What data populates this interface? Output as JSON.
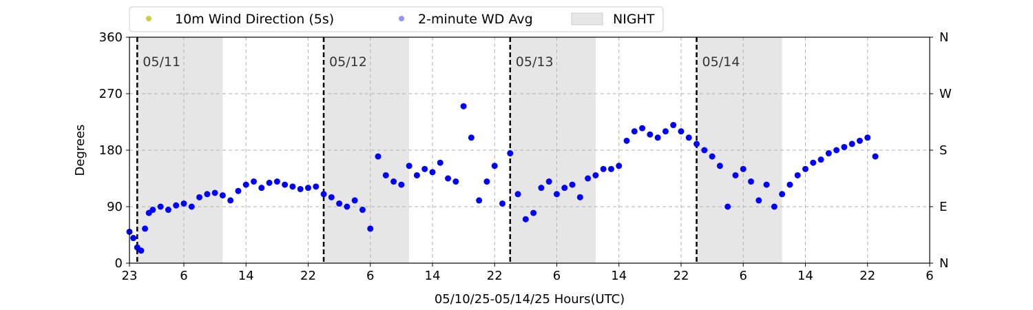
{
  "chart_data": {
    "type": "scatter",
    "title": "",
    "xlabel": "05/10/25-05/14/25  Hours(UTC)",
    "ylabel": "Degrees",
    "x_unit": "hours (UTC), cumulative from 05/10 23:00",
    "xlim": [
      0,
      103
    ],
    "ylim": [
      0,
      360
    ],
    "x_tick_values": [
      0,
      7,
      15,
      23,
      31,
      39,
      47,
      55,
      63,
      71,
      79,
      87,
      95,
      103
    ],
    "x_tick_labels": [
      "23",
      "6",
      "14",
      "22",
      "6",
      "14",
      "22",
      "6",
      "14",
      "22",
      "6",
      "14",
      "22",
      "6"
    ],
    "y_tick_values": [
      0,
      90,
      180,
      270,
      360
    ],
    "y_tick_labels": [
      "0",
      "90",
      "180",
      "270",
      "360"
    ],
    "y2_tick_labels": [
      "N",
      "E",
      "S",
      "W",
      "N"
    ],
    "grid": true,
    "legend_position": "top-center",
    "legend": [
      {
        "name": "10m Wind Direction (5s)",
        "kind": "marker",
        "color": "#bfbf00"
      },
      {
        "name": "2-minute WD Avg",
        "kind": "marker",
        "color": "#6f6fff"
      },
      {
        "name": "NIGHT",
        "kind": "patch",
        "color": "#e6e6e6"
      }
    ],
    "day_markers": [
      {
        "x": 1,
        "label": "05/11"
      },
      {
        "x": 25,
        "label": "05/12"
      },
      {
        "x": 49,
        "label": "05/13"
      },
      {
        "x": 73,
        "label": "05/14"
      }
    ],
    "night_shading": [
      [
        1,
        12
      ],
      [
        25,
        36
      ],
      [
        49,
        60
      ],
      [
        73,
        84
      ]
    ],
    "series": [
      {
        "name": "10m Wind Direction (5s)",
        "color": "#bfbf00",
        "opacity": 0.65,
        "x": [
          0,
          0.5,
          1,
          1.5,
          2,
          2.5,
          3,
          4,
          5,
          6,
          7,
          8,
          9,
          10,
          11,
          12,
          13,
          14,
          15,
          16,
          17,
          18,
          19,
          20,
          21,
          22,
          23,
          24,
          25,
          26,
          27,
          28,
          29,
          30,
          31,
          32,
          33,
          34,
          35,
          36,
          37,
          38,
          39,
          40,
          41,
          42,
          43,
          44,
          45,
          46,
          47,
          48,
          49,
          50,
          51,
          52,
          53,
          54,
          55,
          56,
          57,
          58,
          59,
          60,
          61,
          62,
          63,
          64,
          65,
          66,
          67,
          68,
          69,
          70,
          71,
          72,
          73,
          74,
          75,
          76,
          77,
          78,
          79,
          80,
          81,
          82,
          83,
          84,
          85,
          86,
          87,
          88,
          89,
          90,
          91,
          92,
          93,
          94,
          95,
          96
        ],
        "y": [
          50,
          40,
          25,
          20,
          55,
          80,
          85,
          90,
          85,
          92,
          95,
          90,
          105,
          110,
          112,
          108,
          100,
          115,
          125,
          130,
          120,
          128,
          130,
          125,
          122,
          118,
          120,
          122,
          110,
          105,
          95,
          90,
          100,
          85,
          55,
          170,
          140,
          130,
          125,
          155,
          140,
          150,
          145,
          160,
          135,
          130,
          250,
          200,
          100,
          130,
          155,
          95,
          175,
          110,
          70,
          80,
          120,
          130,
          110,
          120,
          125,
          105,
          135,
          140,
          150,
          150,
          155,
          195,
          210,
          215,
          205,
          200,
          210,
          220,
          210,
          200,
          190,
          180,
          170,
          155,
          90,
          140,
          150,
          130,
          100,
          125,
          90,
          110,
          125,
          140,
          150,
          160,
          165,
          175,
          180,
          185,
          190,
          195,
          200,
          170
        ]
      },
      {
        "name": "2-minute WD Avg",
        "color": "#0000ff",
        "opacity": 1.0,
        "x": [
          0,
          0.5,
          1,
          1.5,
          2,
          2.5,
          3,
          4,
          5,
          6,
          7,
          8,
          9,
          10,
          11,
          12,
          13,
          14,
          15,
          16,
          17,
          18,
          19,
          20,
          21,
          22,
          23,
          24,
          25,
          26,
          27,
          28,
          29,
          30,
          31,
          32,
          33,
          34,
          35,
          36,
          37,
          38,
          39,
          40,
          41,
          42,
          43,
          44,
          45,
          46,
          47,
          48,
          49,
          50,
          51,
          52,
          53,
          54,
          55,
          56,
          57,
          58,
          59,
          60,
          61,
          62,
          63,
          64,
          65,
          66,
          67,
          68,
          69,
          70,
          71,
          72,
          73,
          74,
          75,
          76,
          77,
          78,
          79,
          80,
          81,
          82,
          83,
          84,
          85,
          86,
          87,
          88,
          89,
          90,
          91,
          92,
          93,
          94,
          95,
          96
        ],
        "y": [
          50,
          40,
          25,
          20,
          55,
          80,
          85,
          90,
          85,
          92,
          95,
          90,
          105,
          110,
          112,
          108,
          100,
          115,
          125,
          130,
          120,
          128,
          130,
          125,
          122,
          118,
          120,
          122,
          110,
          105,
          95,
          90,
          100,
          85,
          55,
          170,
          140,
          130,
          125,
          155,
          140,
          150,
          145,
          160,
          135,
          130,
          250,
          200,
          100,
          130,
          155,
          95,
          175,
          110,
          70,
          80,
          120,
          130,
          110,
          120,
          125,
          105,
          135,
          140,
          150,
          150,
          155,
          195,
          210,
          215,
          205,
          200,
          210,
          220,
          210,
          200,
          190,
          180,
          170,
          155,
          90,
          140,
          150,
          130,
          100,
          125,
          90,
          110,
          125,
          140,
          150,
          160,
          165,
          175,
          180,
          185,
          190,
          195,
          200,
          170
        ]
      }
    ]
  }
}
